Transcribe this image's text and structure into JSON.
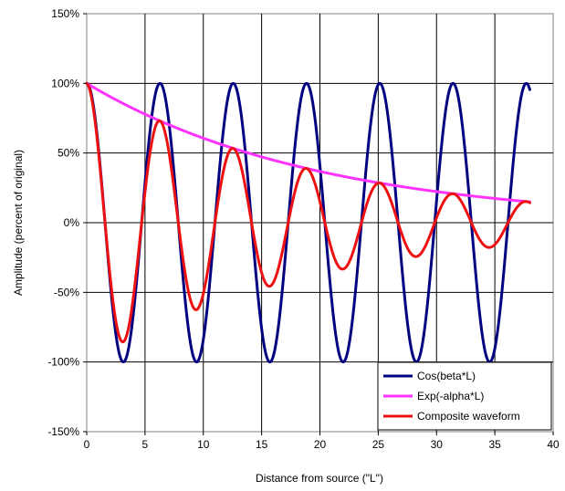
{
  "chart_data": {
    "type": "line",
    "title": "",
    "xlabel": "Distance from source (\"L\")",
    "ylabel": "Amplitude (percent of original)",
    "xlim": [
      0,
      40
    ],
    "ylim": [
      -150,
      150
    ],
    "x_ticks": [
      0,
      5,
      10,
      15,
      20,
      25,
      30,
      35,
      40
    ],
    "x_tick_labels": [
      "0",
      "5",
      "10",
      "15",
      "20",
      "25",
      "30",
      "35",
      "40"
    ],
    "y_ticks": [
      150,
      100,
      50,
      0,
      -50,
      -100,
      -150
    ],
    "y_tick_labels": [
      "150%",
      "100%",
      "50%",
      "0%",
      "-50%",
      "-100%",
      "-150%"
    ],
    "grid": true,
    "legend_position": "bottom-right",
    "x_range": [
      0,
      38
    ],
    "series": [
      {
        "name": "Cos(beta*L)",
        "color": "#000080",
        "formula": "cos(beta*L)",
        "beta": 1.0,
        "x": [
          0,
          3.14,
          6.28,
          9.42,
          12.57,
          15.71,
          18.85,
          21.99,
          25.13,
          28.27,
          31.42,
          34.56,
          37.7,
          38
        ],
        "values": [
          100,
          -100,
          100,
          -100,
          100,
          -100,
          100,
          -100,
          100,
          -100,
          100,
          -100,
          100,
          95.5
        ]
      },
      {
        "name": "Exp(-alpha*L)",
        "color": "#FF33FF",
        "formula": "exp(-alpha*L)",
        "alpha": 0.05,
        "x": [
          0,
          5,
          10,
          15,
          20,
          25,
          30,
          35,
          38
        ],
        "values": [
          100,
          77.9,
          60.7,
          47.2,
          36.8,
          28.7,
          22.3,
          17.4,
          15.0
        ]
      },
      {
        "name": "Composite waveform",
        "color": "#EE1111",
        "formula": "exp(-alpha*L)*cos(beta*L)",
        "x": [
          0,
          3.14,
          6.28,
          9.42,
          12.57,
          15.71,
          18.85,
          21.99,
          25.13,
          28.27,
          31.42,
          34.56,
          37.7,
          38
        ],
        "values": [
          100,
          -85.5,
          73.0,
          -62.4,
          53.3,
          -45.6,
          39.0,
          -33.3,
          28.5,
          -24.3,
          20.8,
          -17.8,
          15.2,
          14.3
        ]
      }
    ]
  }
}
